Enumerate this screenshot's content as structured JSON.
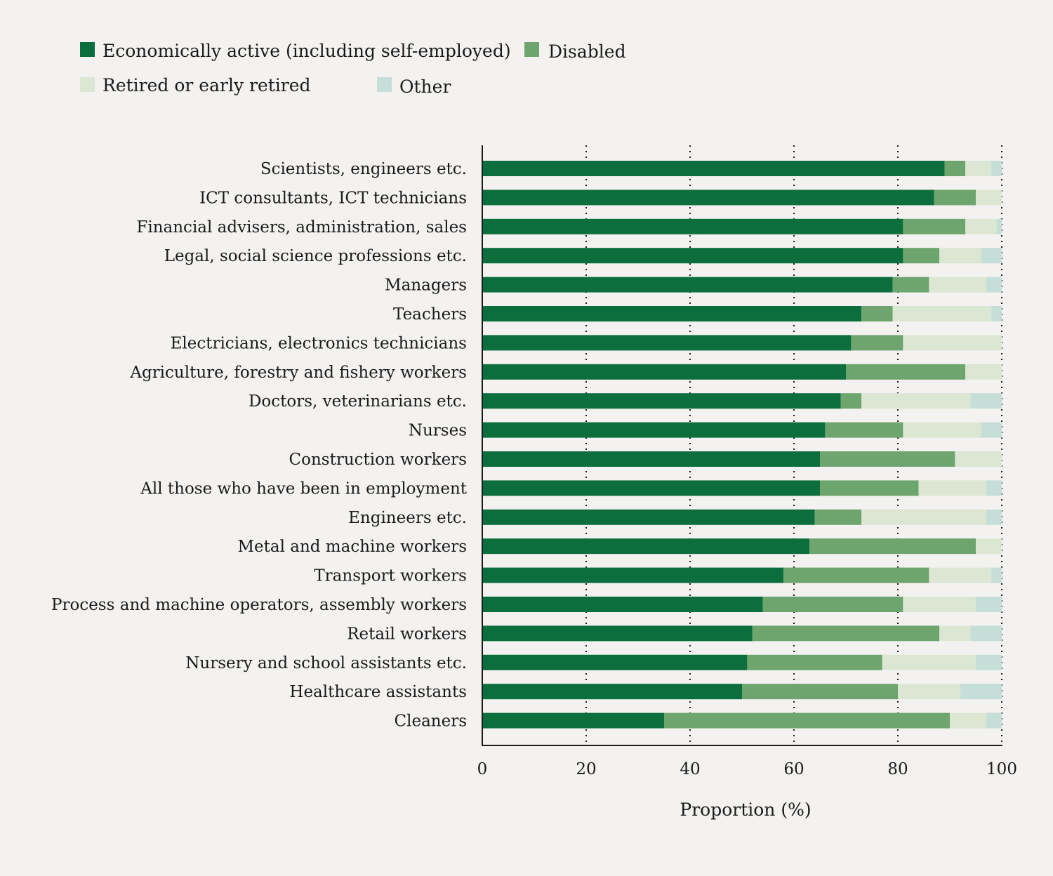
{
  "chart_data": {
    "type": "bar",
    "orientation": "horizontal",
    "stacked": true,
    "title": "",
    "xlabel": "Proportion (%)",
    "ylabel": "",
    "xlim": [
      0,
      100
    ],
    "xticks": [
      "0",
      "20",
      "40",
      "60",
      "80",
      "100"
    ],
    "grid": "vertical dotted",
    "legend_position": "top-left",
    "categories": [
      "Scientists, engineers etc.",
      "ICT consultants, ICT technicians",
      "Financial advisers, administration, sales",
      "Legal, social science professions etc.",
      "Managers",
      "Teachers",
      "Electricians, electronics technicians",
      "Agriculture, forestry and fishery workers",
      "Doctors, veterinarians etc.",
      "Nurses",
      "Construction workers",
      "All those who have been in employment",
      "Engineers etc.",
      "Metal and machine workers",
      "Transport workers",
      "Process and machine operators, assembly workers",
      "Retail workers",
      "Nursery and school assistants etc.",
      "Healthcare assistants",
      "Cleaners"
    ],
    "series": [
      {
        "name": "Economically active (including self-employed)",
        "color": "#0b6e3c",
        "values": [
          89,
          87,
          81,
          81,
          79,
          73,
          71,
          70,
          69,
          66,
          65,
          65,
          64,
          63,
          58,
          54,
          52,
          51,
          50,
          35
        ]
      },
      {
        "name": "Disabled",
        "color": "#6ea56f",
        "values": [
          4,
          8,
          12,
          7,
          7,
          6,
          10,
          23,
          4,
          15,
          26,
          19,
          9,
          32,
          28,
          27,
          36,
          26,
          30,
          55
        ]
      },
      {
        "name": "Retired or early retired",
        "color": "#dbe7d3",
        "values": [
          5,
          5,
          6,
          8,
          11,
          19,
          19,
          7,
          21,
          15,
          9,
          13,
          24,
          5,
          12,
          14,
          6,
          18,
          12,
          7
        ]
      },
      {
        "name": "Other",
        "color": "#c5ded8",
        "values": [
          2,
          0,
          1,
          4,
          3,
          2,
          0,
          0,
          6,
          4,
          0,
          3,
          3,
          0,
          2,
          5,
          6,
          5,
          8,
          3
        ]
      }
    ]
  }
}
